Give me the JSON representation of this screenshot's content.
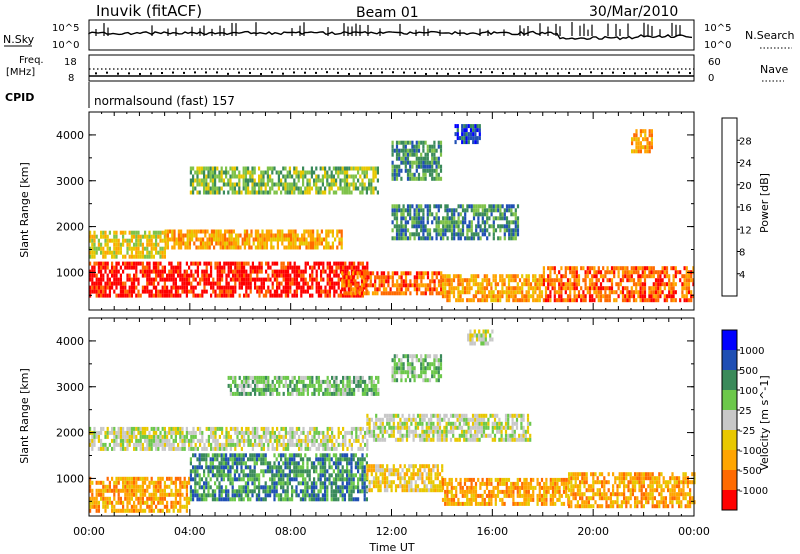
{
  "header": {
    "title": "Inuvik (fitACF)",
    "beam": "Beam 01",
    "date": "30/Mar/2010"
  },
  "status_panels": {
    "nsky_label": "N.Sky",
    "nsky_ticks": [
      "10^5",
      "10^0"
    ],
    "nsearch_label": "N.Search",
    "nsearch_ticks": [
      "10^5",
      "10^0"
    ],
    "freq_label": "Freq.",
    "freq_unit": "[MHz]",
    "freq_ticks": [
      "18",
      "8"
    ],
    "nave_label": "Nave",
    "nave_ticks": [
      "60",
      "0"
    ],
    "cpid_label": "CPID",
    "cpid_value": "normalsound (fast) 157"
  },
  "colors": {
    "power_scale": [
      "#0000ff",
      "#1f4fb4",
      "#3a8a5a",
      "#7fc24a",
      "#e8c800",
      "#ffa500",
      "#ff6a00",
      "#ff0000"
    ],
    "velocity_scale": [
      "#0000ff",
      "#1f4fb4",
      "#3a8a5a",
      "#6cc84a",
      "#c8c8c8",
      "#e8c800",
      "#ffa500",
      "#ff6a00",
      "#ff0000"
    ]
  },
  "chart_data": [
    {
      "type": "heatmap",
      "name": "power",
      "ylabel": "Slant Range [km]",
      "yticks": [
        "1000",
        "2000",
        "3000",
        "4000"
      ],
      "ylim": [
        180,
        4500
      ],
      "xticks": [
        "00:00",
        "04:00",
        "08:00",
        "12:00",
        "16:00",
        "20:00",
        "00:00"
      ],
      "xlim": [
        0,
        24
      ],
      "colorbar": {
        "label": "Power [dB]",
        "ticks": [
          "4",
          "8",
          "12",
          "16",
          "20",
          "24",
          "28"
        ]
      },
      "bands": [
        {
          "start": 0.0,
          "end": 11.0,
          "low": 450,
          "high": 1200,
          "level": 7
        },
        {
          "start": 0.0,
          "end": 3.0,
          "low": 1300,
          "high": 1900,
          "level": 4
        },
        {
          "start": 3.0,
          "end": 10.0,
          "low": 1500,
          "high": 1900,
          "level": 5
        },
        {
          "start": 10.0,
          "end": 14.0,
          "low": 500,
          "high": 1000,
          "level": 6
        },
        {
          "start": 12.0,
          "end": 17.0,
          "low": 1700,
          "high": 2400,
          "level": 2
        },
        {
          "start": 14.0,
          "end": 18.0,
          "low": 350,
          "high": 900,
          "level": 5
        },
        {
          "start": 18.0,
          "end": 24.0,
          "low": 350,
          "high": 1100,
          "level": 6
        },
        {
          "start": 4.0,
          "end": 11.5,
          "low": 2700,
          "high": 3300,
          "level": 3
        },
        {
          "start": 12.0,
          "end": 14.0,
          "low": 3000,
          "high": 3800,
          "level": 2
        },
        {
          "start": 14.5,
          "end": 15.5,
          "low": 3800,
          "high": 4200,
          "level": 1
        },
        {
          "start": 21.5,
          "end": 22.3,
          "low": 3600,
          "high": 4100,
          "level": 5
        }
      ]
    },
    {
      "type": "heatmap",
      "name": "velocity",
      "ylabel": "Slant Range [km]",
      "yticks": [
        "1000",
        "2000",
        "3000",
        "4000"
      ],
      "ylim": [
        180,
        4500
      ],
      "xticks": [
        "00:00",
        "04:00",
        "08:00",
        "12:00",
        "16:00",
        "20:00",
        "00:00"
      ],
      "xlim": [
        0,
        24
      ],
      "xlabel": "Time UT",
      "colorbar": {
        "label": "Velocity [m s^-1]",
        "ticks": [
          "1000",
          "500",
          "100",
          "25",
          "-25",
          "-100",
          "-500",
          "-1000"
        ]
      },
      "bands": [
        {
          "start": 0.0,
          "end": 4.0,
          "low": 250,
          "high": 1000,
          "level": 6
        },
        {
          "start": 4.0,
          "end": 11.0,
          "low": 500,
          "high": 1500,
          "level": 2
        },
        {
          "start": 0.0,
          "end": 11.0,
          "low": 1600,
          "high": 2100,
          "level": 4
        },
        {
          "start": 11.0,
          "end": 17.5,
          "low": 1800,
          "high": 2400,
          "level": 4
        },
        {
          "start": 11.0,
          "end": 14.0,
          "low": 700,
          "high": 1300,
          "level": 5
        },
        {
          "start": 14.0,
          "end": 19.0,
          "low": 400,
          "high": 1000,
          "level": 6
        },
        {
          "start": 19.0,
          "end": 24.0,
          "low": 350,
          "high": 1100,
          "level": 6
        },
        {
          "start": 5.5,
          "end": 11.5,
          "low": 2800,
          "high": 3200,
          "level": 3
        },
        {
          "start": 12.0,
          "end": 14.0,
          "low": 3100,
          "high": 3700,
          "level": 3
        },
        {
          "start": 15.0,
          "end": 16.0,
          "low": 3900,
          "high": 4200,
          "level": 4
        }
      ]
    }
  ]
}
